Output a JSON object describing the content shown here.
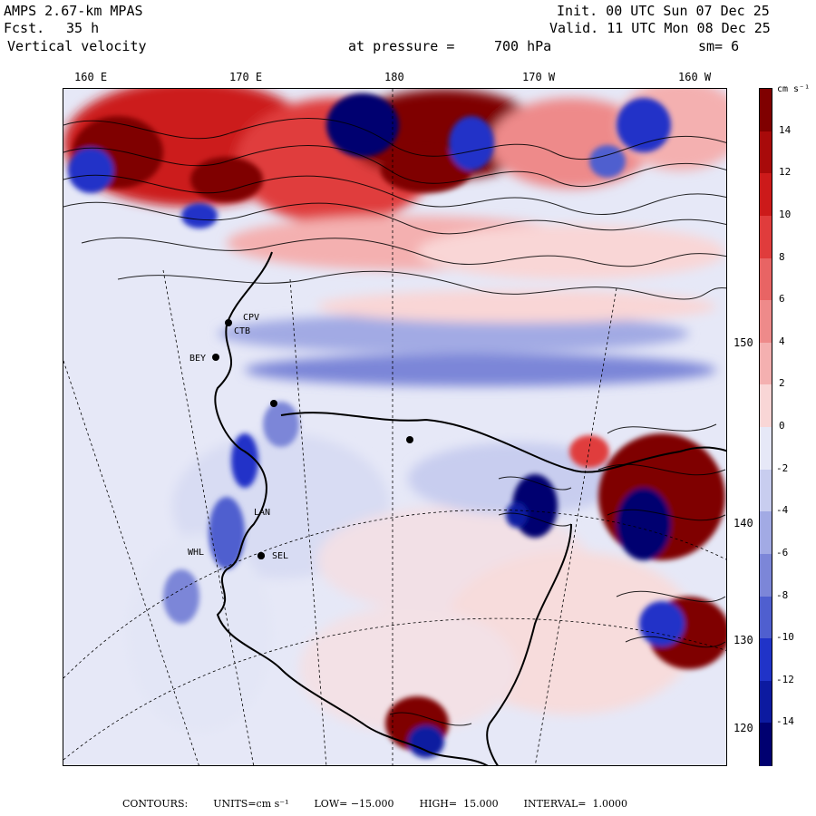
{
  "header": {
    "model": "AMPS 2.67-km MPAS",
    "forecast_label": "Fcst.",
    "forecast_value": "35 h",
    "field": "Vertical velocity",
    "pressure_label": "at pressure =",
    "pressure_value": "700 hPa",
    "init": "Init. 00 UTC Sun 07 Dec 25",
    "valid": "Valid. 11 UTC Mon 08 Dec 25",
    "smoothing": "sm= 6"
  },
  "longitude_labels": [
    "160 E",
    "170 E",
    "180",
    "170 W",
    "160 W"
  ],
  "latitude_labels": [
    "150 W",
    "140 W",
    "130 W",
    "120 W"
  ],
  "stations": [
    "CPV",
    "CTB",
    "BEY",
    "LAN",
    "WHL",
    "SEL"
  ],
  "colorbar": {
    "units": "cm s⁻¹",
    "range": [
      -16,
      16
    ],
    "step": 2,
    "labels": [
      "14",
      "12",
      "10",
      "8",
      "6",
      "4",
      "2",
      "0",
      "-2",
      "-4",
      "-6",
      "-8",
      "-10",
      "-12",
      "-14"
    ],
    "colors": {
      "positive": [
        "#f9d6d6",
        "#f4b0b0",
        "#ee8a8a",
        "#e86464",
        "#e03c3c",
        "#cc1a1a",
        "#a80a0a",
        "#7f0000"
      ],
      "negative": [
        "#e6e8f7",
        "#c8cdef",
        "#a2aae4",
        "#7c86d8",
        "#4f5fcf",
        "#2033c8",
        "#0c1aa0",
        "#000070"
      ]
    }
  },
  "footer": {
    "contours": "CONTOURS:",
    "units": "UNITS=cm s⁻¹",
    "low": "LOW= −15.000",
    "high": "HIGH=  15.000",
    "interval": "INTERVAL=  1.0000"
  }
}
